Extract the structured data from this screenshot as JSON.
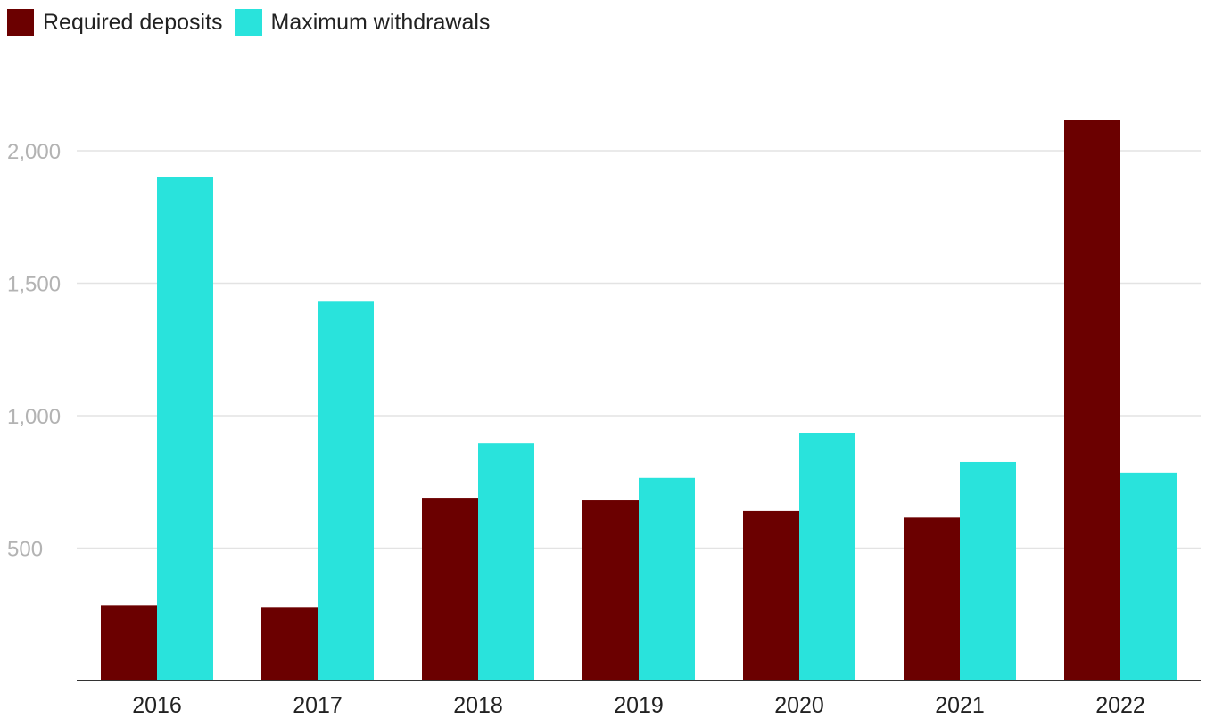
{
  "chart_data": {
    "type": "bar",
    "title": "",
    "xlabel": "",
    "ylabel": "",
    "categories": [
      "2016",
      "2017",
      "2018",
      "2019",
      "2020",
      "2021",
      "2022"
    ],
    "series": [
      {
        "name": "Required deposits",
        "color": "#6b0000",
        "values": [
          285,
          275,
          690,
          680,
          640,
          615,
          2115
        ]
      },
      {
        "name": "Maximum withdrawals",
        "color": "#29e3dc",
        "values": [
          1900,
          1430,
          895,
          765,
          935,
          825,
          785
        ]
      }
    ],
    "ylim": [
      0,
      2250
    ],
    "yticks": [
      500,
      1000,
      1500,
      2000
    ],
    "ytick_labels": [
      "500",
      "1,000",
      "1,500",
      "2,000"
    ],
    "grid": true,
    "legend_position": "top-left"
  }
}
